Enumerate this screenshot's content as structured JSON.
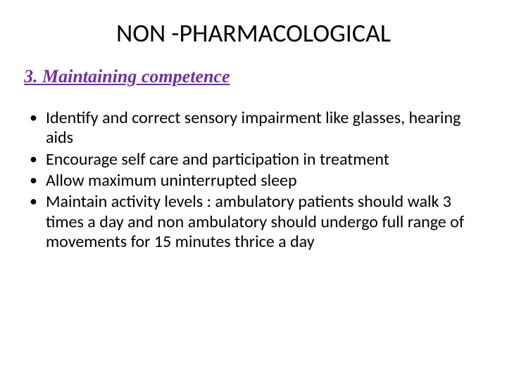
{
  "slide": {
    "title": "NON -PHARMACOLOGICAL",
    "subtitle": "3. Maintaining competence",
    "bullets": [
      "Identify and correct sensory impairment like glasses, hearing aids",
      "Encourage self care and participation in treatment",
      "Allow maximum uninterrupted sleep",
      "Maintain activity levels : ambulatory patients should walk 3 times a day and non ambulatory should undergo full range of movements for 15 minutes thrice a day"
    ]
  },
  "styling": {
    "background_color": "#ffffff",
    "title_color": "#000000",
    "title_fontsize": 36,
    "title_fontweight": "400",
    "subtitle_color": "#7030a0",
    "subtitle_fontsize": 26,
    "subtitle_fontfamily": "Times New Roman",
    "subtitle_fontstyle": "italic bold underline",
    "bullet_fontsize": 24,
    "bullet_color": "#000000",
    "bullet_marker": "•"
  }
}
